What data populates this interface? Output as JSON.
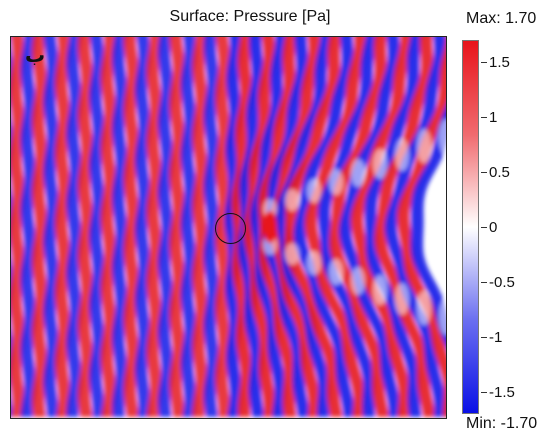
{
  "chart_data": {
    "type": "heatmap",
    "title": "Surface: Pressure [Pa]",
    "panel_label": "ب",
    "colorbar": {
      "max_label": "Max: 1.70",
      "min_label": "Min: -1.70",
      "range": [
        -1.7,
        1.7
      ],
      "ticks": [
        {
          "value": 1.5,
          "label": "1.5"
        },
        {
          "value": 1,
          "label": "1"
        },
        {
          "value": 0.5,
          "label": "0.5"
        },
        {
          "value": 0,
          "label": "0"
        },
        {
          "value": -0.5,
          "label": "-0.5"
        },
        {
          "value": -1,
          "label": "-1"
        },
        {
          "value": -1.5,
          "label": "-1.5"
        }
      ],
      "colors": {
        "high": "#e8141b",
        "zero": "#ffffff",
        "low": "#0a10e6"
      }
    },
    "field": "plane wave travelling along x scattered by a circular obstacle; interference fringes downstream",
    "wavefronts": 19,
    "grid": false
  }
}
